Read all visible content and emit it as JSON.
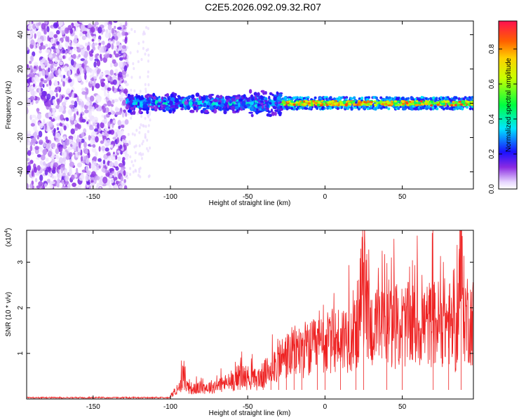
{
  "title": "C2E5.2026.092.09.32.R07",
  "colors": {
    "trace": "#ee2222",
    "axis": "#000000"
  },
  "chart_data": [
    {
      "type": "heatmap",
      "xlabel": "Height of straight line (km)",
      "ylabel": "Frequency (Hz)",
      "xlim": [
        -193,
        96
      ],
      "ylim": [
        -50,
        48
      ],
      "xticks": [
        -150,
        -100,
        -50,
        0,
        50
      ],
      "yticks": [
        -40,
        -20,
        0,
        20,
        40
      ],
      "grid": false,
      "colorbar": {
        "label": "Normalized spectral amplitude",
        "range": [
          0,
          0.96
        ],
        "ticks": [
          "0.0",
          "0.2",
          "0.4",
          "0.6",
          "0.8"
        ],
        "colormap": "rainbow (white-violet-blue-cyan-green-yellow-red)"
      },
      "regions": [
        {
          "x": [
            -193,
            -128
          ],
          "y": [
            -50,
            48
          ],
          "amplitude": [
            0.0,
            0.15
          ],
          "pattern": "scattered noise"
        },
        {
          "x": [
            -128,
            -28
          ],
          "y": [
            -10,
            10
          ],
          "amplitude": [
            0.1,
            0.45
          ],
          "pattern": "band around 0 Hz"
        },
        {
          "x": [
            -28,
            96
          ],
          "y": [
            -3,
            3
          ],
          "amplitude": [
            0.3,
            0.95
          ],
          "pattern": "narrow band at 0 Hz"
        }
      ]
    },
    {
      "type": "line",
      "xlabel": "Height of straight line (km)",
      "ylabel": "SNR (10 * v/v)",
      "multiplier": "(x10",
      "multiplier_exp": "4",
      "multiplier_close": ")",
      "xlim": [
        -193,
        96
      ],
      "ylim": [
        0,
        3.7
      ],
      "xticks": [
        -150,
        -100,
        -50,
        0,
        50
      ],
      "yticks": [
        1,
        2,
        3
      ],
      "grid": false,
      "series": [
        {
          "x": [
            -193,
            -150,
            -120,
            -110,
            -100,
            -95,
            -91,
            -90,
            -85,
            -80,
            -75,
            -70,
            -60,
            -55,
            -50,
            -45,
            -40,
            -35,
            -30,
            -25,
            -20,
            -15,
            -10,
            -5,
            0,
            10,
            20,
            25,
            30,
            40,
            50,
            60,
            70,
            80,
            85,
            88,
            90,
            95
          ],
          "y": [
            0.02,
            0.02,
            0.03,
            0.05,
            0.1,
            0.2,
            0.7,
            0.35,
            0.25,
            0.3,
            0.3,
            0.35,
            0.45,
            0.6,
            0.55,
            0.5,
            0.6,
            0.8,
            1.0,
            1.1,
            1.2,
            1.3,
            1.25,
            1.35,
            1.4,
            1.55,
            1.7,
            3.0,
            1.8,
            1.85,
            1.9,
            1.9,
            1.95,
            2.0,
            1.5,
            3.7,
            2.2,
            2.0
          ]
        }
      ]
    }
  ]
}
